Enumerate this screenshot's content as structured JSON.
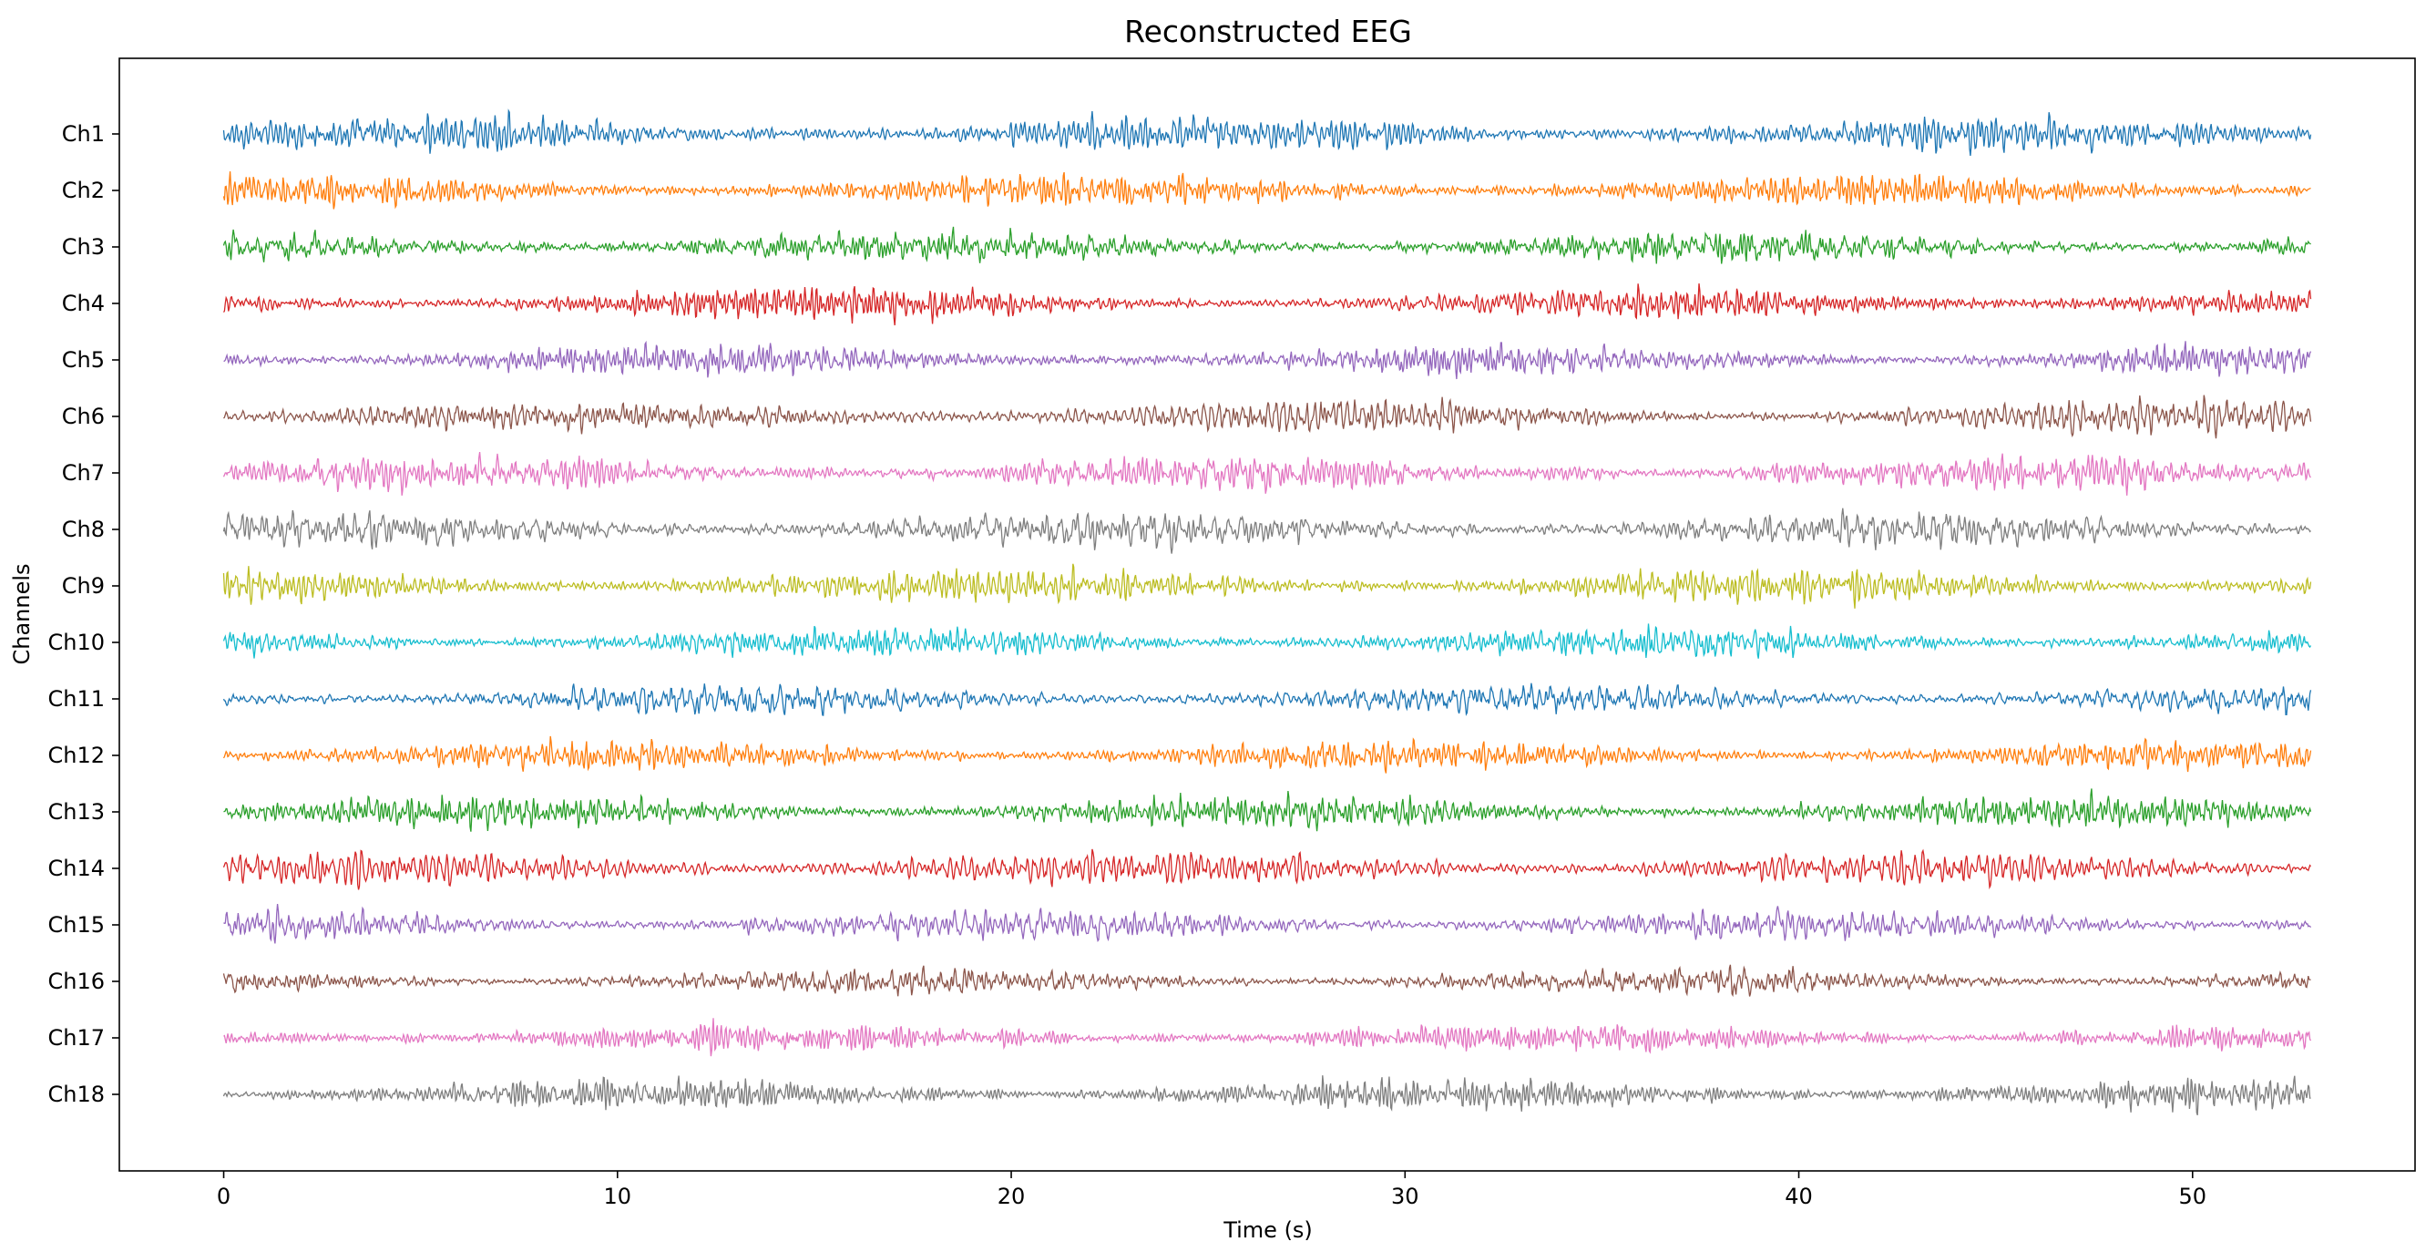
{
  "chart_data": {
    "type": "line",
    "title": "Reconstructed EEG",
    "xlabel": "Time (s)",
    "ylabel": "Channels",
    "xlim": [
      -2.65,
      55.65
    ],
    "x_ticks": [
      0,
      10,
      20,
      30,
      40,
      50
    ],
    "x_tick_labels": [
      "0",
      "10",
      "20",
      "30",
      "40",
      "50"
    ],
    "duration_s": 53,
    "grid": false,
    "legend": "none",
    "series": [
      {
        "name": "Ch1",
        "color": "#1f77b4"
      },
      {
        "name": "Ch2",
        "color": "#ff7f0e"
      },
      {
        "name": "Ch3",
        "color": "#2ca02c"
      },
      {
        "name": "Ch4",
        "color": "#d62728"
      },
      {
        "name": "Ch5",
        "color": "#9467bd"
      },
      {
        "name": "Ch6",
        "color": "#8c564b"
      },
      {
        "name": "Ch7",
        "color": "#e377c2"
      },
      {
        "name": "Ch8",
        "color": "#7f7f7f"
      },
      {
        "name": "Ch9",
        "color": "#bcbd22"
      },
      {
        "name": "Ch10",
        "color": "#17becf"
      },
      {
        "name": "Ch11",
        "color": "#1f77b4"
      },
      {
        "name": "Ch12",
        "color": "#ff7f0e"
      },
      {
        "name": "Ch13",
        "color": "#2ca02c"
      },
      {
        "name": "Ch14",
        "color": "#d62728"
      },
      {
        "name": "Ch15",
        "color": "#9467bd"
      },
      {
        "name": "Ch16",
        "color": "#8c564b"
      },
      {
        "name": "Ch17",
        "color": "#e377c2"
      },
      {
        "name": "Ch18",
        "color": "#7f7f7f"
      }
    ]
  }
}
